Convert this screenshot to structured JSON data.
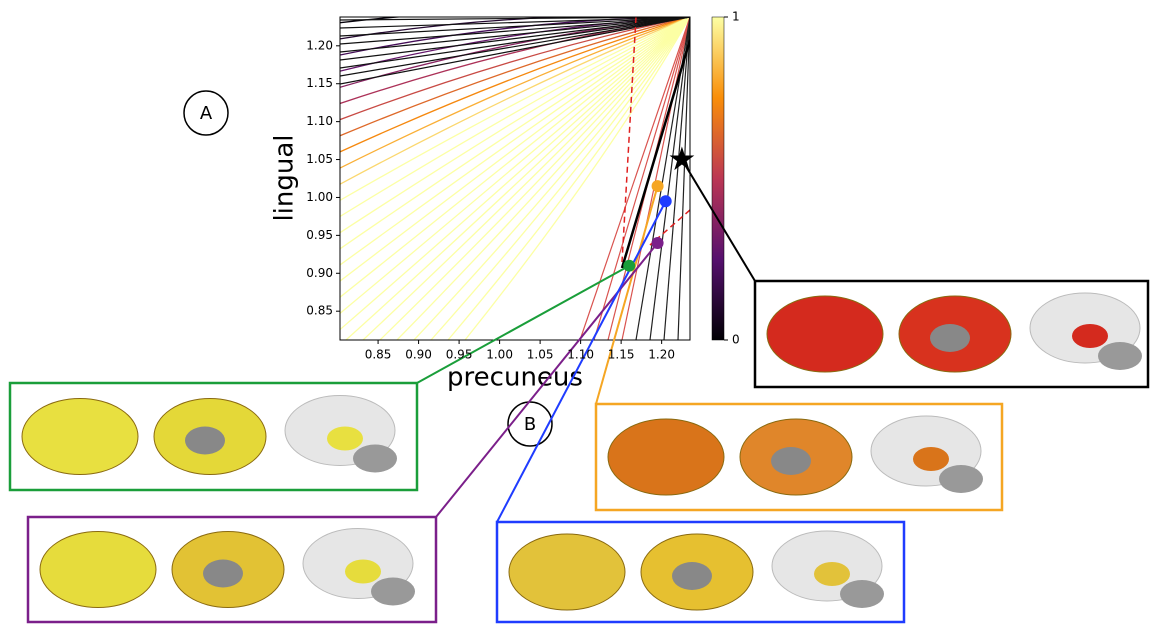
{
  "chart_data": {
    "type": "phase",
    "xlabel": "precuneus",
    "ylabel": "lingual",
    "xlim": [
      0.803,
      1.235
    ],
    "ylim": [
      0.812,
      1.238
    ],
    "xticks": [
      {
        "value": 0.85,
        "label": "0.85"
      },
      {
        "value": 0.9,
        "label": "0.90"
      },
      {
        "value": 0.95,
        "label": "0.95"
      },
      {
        "value": 1.0,
        "label": "1.00"
      },
      {
        "value": 1.05,
        "label": "1.05"
      },
      {
        "value": 1.1,
        "label": "1.10"
      },
      {
        "value": 1.15,
        "label": "1.15"
      },
      {
        "value": 1.2,
        "label": "1.20"
      }
    ],
    "yticks": [
      {
        "value": 0.85,
        "label": "0.85"
      },
      {
        "value": 0.9,
        "label": "0.90"
      },
      {
        "value": 0.95,
        "label": "0.95"
      },
      {
        "value": 1.0,
        "label": "1.00"
      },
      {
        "value": 1.05,
        "label": "1.05"
      },
      {
        "value": 1.1,
        "label": "1.10"
      },
      {
        "value": 1.15,
        "label": "1.15"
      },
      {
        "value": 1.2,
        "label": "1.20"
      }
    ],
    "colorbar": {
      "colormap": "inferno",
      "ticks": [
        0,
        1
      ]
    },
    "markers": [
      {
        "shape": "circle",
        "color": "#1a9e3a",
        "x": 1.16,
        "y": 0.91
      },
      {
        "shape": "circle",
        "color": "#f5a623",
        "x": 1.195,
        "y": 1.015
      },
      {
        "shape": "circle",
        "color": "#1f3cff",
        "x": 1.205,
        "y": 0.995
      },
      {
        "shape": "circle",
        "color": "#7b1f8a",
        "x": 1.195,
        "y": 0.94
      },
      {
        "shape": "star",
        "color": "#000000",
        "x": 1.225,
        "y": 1.05
      }
    ],
    "panel_labels": [
      "A",
      "B"
    ]
  }
}
